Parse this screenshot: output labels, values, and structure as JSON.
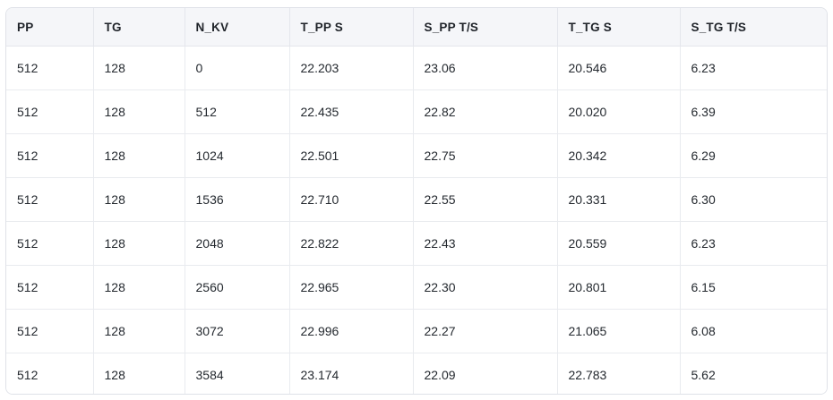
{
  "table": {
    "headers": [
      "PP",
      "TG",
      "N_KV",
      "T_PP S",
      "S_PP T/S",
      "T_TG S",
      "S_TG T/S"
    ],
    "rows": [
      [
        "512",
        "128",
        "0",
        "22.203",
        "23.06",
        "20.546",
        "6.23"
      ],
      [
        "512",
        "128",
        "512",
        "22.435",
        "22.82",
        "20.020",
        "6.39"
      ],
      [
        "512",
        "128",
        "1024",
        "22.501",
        "22.75",
        "20.342",
        "6.29"
      ],
      [
        "512",
        "128",
        "1536",
        "22.710",
        "22.55",
        "20.331",
        "6.30"
      ],
      [
        "512",
        "128",
        "2048",
        "22.822",
        "22.43",
        "20.559",
        "6.23"
      ],
      [
        "512",
        "128",
        "2560",
        "22.965",
        "22.30",
        "20.801",
        "6.15"
      ],
      [
        "512",
        "128",
        "3072",
        "22.996",
        "22.27",
        "21.065",
        "6.08"
      ],
      [
        "512",
        "128",
        "3584",
        "23.174",
        "22.09",
        "22.783",
        "5.62"
      ]
    ]
  },
  "colors": {
    "header_bg": "#f5f6f9",
    "border": "#e4e6ec",
    "outer_border": "#dfe2e8",
    "text": "#24292f",
    "header_text": "#1f2329",
    "page_bg": "#ffffff"
  }
}
